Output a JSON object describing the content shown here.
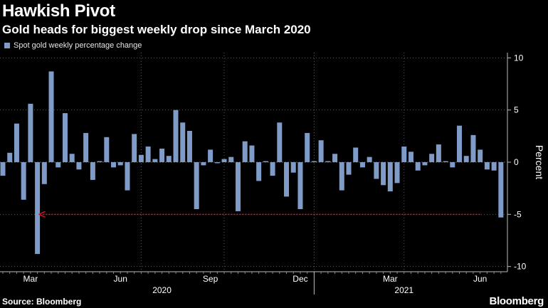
{
  "header": {
    "title": "Hawkish Pivot",
    "subtitle": "Gold heads for biggest weekly drop since March 2020"
  },
  "footer": {
    "source": "Source: Bloomberg",
    "brand": "Bloomberg"
  },
  "colors": {
    "bar": "#7f9bc8",
    "arrow": "#d0112b",
    "grid": "#5a5a5a",
    "background": "#000000"
  },
  "chart_data": {
    "type": "bar",
    "legend": [
      {
        "label": "Spot gold weekly percentage change",
        "color": "#7f9bc8"
      }
    ],
    "ylabel": "Percent",
    "ylim": [
      -10.5,
      10.5
    ],
    "yticks": [
      10,
      5,
      0,
      -5,
      -10
    ],
    "xticks": [
      {
        "label": "Mar",
        "index": 4
      },
      {
        "label": "Jun",
        "index": 17
      },
      {
        "label": "Sep",
        "index": 30
      },
      {
        "label": "Dec",
        "index": 43
      },
      {
        "label": "Mar",
        "index": 56
      },
      {
        "label": "Jun",
        "index": 69
      }
    ],
    "year_labels": [
      {
        "label": "2020",
        "index": 23
      },
      {
        "label": "2021",
        "index": 58
      }
    ],
    "vgrid_indices": [
      20,
      32,
      45,
      58
    ],
    "year_separator_index": 45,
    "values": [
      -1.3,
      0.9,
      3.7,
      -3.6,
      5.6,
      -8.8,
      -2.1,
      8.7,
      -0.5,
      4.7,
      0.8,
      -0.7,
      2.8,
      -1.7,
      0.1,
      2.4,
      -0.5,
      -0.3,
      -2.7,
      2.7,
      0.7,
      1.5,
      0.3,
      1.3,
      0.6,
      5.0,
      3.8,
      3.0,
      -4.5,
      -0.3,
      1.2,
      -0.1,
      0.3,
      0.5,
      -4.7,
      2.0,
      1.6,
      -1.8,
      0.1,
      -1.3,
      3.8,
      -3.3,
      -1.0,
      -4.5,
      2.8,
      0.1,
      2.1,
      0.1,
      0.8,
      -2.7,
      -1.2,
      1.4,
      -0.5,
      0.5,
      -1.6,
      -2.2,
      -2.8,
      -2.0,
      1.5,
      1.0,
      -0.8,
      -0.3,
      0.8,
      1.7,
      0.1,
      -0.5,
      3.5,
      0.6,
      2.6,
      1.2,
      -0.7,
      -0.8,
      -5.3
    ],
    "annotation": {
      "type": "arrow",
      "from_index": 69,
      "to_index": 5,
      "y": -5.0
    }
  }
}
